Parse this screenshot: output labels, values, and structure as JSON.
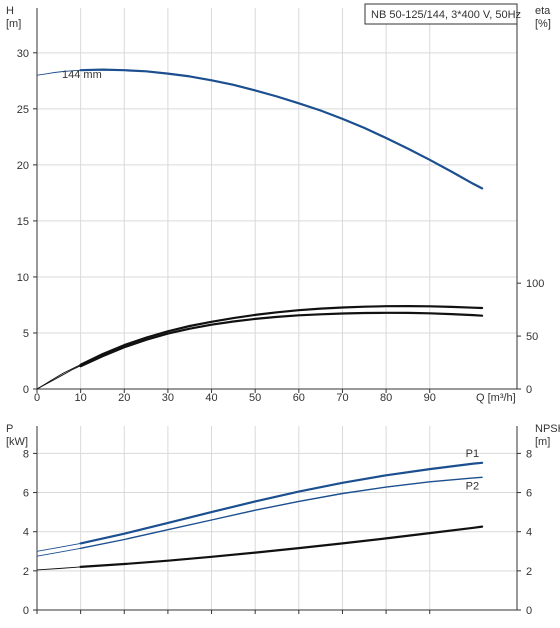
{
  "chart_data": [
    {
      "type": "line",
      "subtitle": "NB 50-125/144, 3*400 V, 50Hz",
      "ylabel_left": [
        "H",
        "[m]"
      ],
      "ylabel_right": [
        "eta",
        "[%]"
      ],
      "xlabel": "Q [m³/h]",
      "x_ticks": [
        0,
        10,
        20,
        30,
        40,
        50,
        60,
        70,
        80,
        90
      ],
      "y_ticks_left": [
        0,
        5,
        10,
        15,
        20,
        25,
        30
      ],
      "y_ticks_right": [
        0,
        50,
        100
      ],
      "xlim": [
        0,
        110
      ],
      "ylim_left": [
        0,
        34
      ],
      "ylim_right": [
        0,
        360
      ],
      "grid": true,
      "annotation": "144 mm",
      "series": [
        {
          "axis": "left",
          "color": "#1c4f8f",
          "x_dashed": [
            0,
            2,
            4,
            6,
            8,
            10
          ],
          "y_dashed": [
            28.0,
            28.12,
            28.24,
            28.33,
            28.4,
            28.45
          ],
          "x": [
            10,
            15,
            20,
            25,
            30,
            35,
            40,
            45,
            50,
            55,
            60,
            65,
            70,
            75,
            80,
            85,
            90,
            95,
            100,
            102
          ],
          "y": [
            28.45,
            28.5,
            28.45,
            28.35,
            28.15,
            27.9,
            27.55,
            27.15,
            26.65,
            26.1,
            25.5,
            24.85,
            24.1,
            23.3,
            22.4,
            21.45,
            20.45,
            19.4,
            18.3,
            17.9
          ]
        },
        {
          "axis": "right",
          "color": "#111111",
          "x_dashed": [
            0,
            2,
            4,
            6,
            8,
            10
          ],
          "y_dashed": [
            0,
            5,
            10,
            15,
            19,
            23
          ],
          "x": [
            10,
            15,
            20,
            25,
            30,
            35,
            40,
            45,
            50,
            55,
            60,
            65,
            70,
            75,
            80,
            85,
            90,
            95,
            100,
            102
          ],
          "y": [
            23,
            33,
            41.5,
            48.5,
            54.5,
            59.5,
            63.5,
            67,
            70,
            72.5,
            74.5,
            76,
            77,
            77.8,
            78.2,
            78.3,
            78.1,
            77.6,
            76.8,
            76.5
          ]
        },
        {
          "axis": "right",
          "color": "#111111",
          "x_dashed": [
            0,
            2,
            4,
            6,
            8,
            10
          ],
          "y_dashed": [
            0,
            4.5,
            9,
            13.5,
            18,
            22
          ],
          "x": [
            10,
            15,
            20,
            25,
            30,
            35,
            40,
            45,
            50,
            55,
            60,
            65,
            70,
            75,
            80,
            85,
            90,
            95,
            100,
            102
          ],
          "y": [
            21.5,
            31,
            39.5,
            46.5,
            52.3,
            57,
            60.8,
            63.8,
            66.2,
            68.1,
            69.6,
            70.6,
            71.3,
            71.8,
            72,
            71.9,
            71.5,
            70.8,
            69.8,
            69.3
          ]
        }
      ]
    },
    {
      "type": "line",
      "ylabel_left": [
        "P",
        "[kW]"
      ],
      "ylabel_right": [
        "NPSH",
        "[m]"
      ],
      "x_ticks": [
        0,
        10,
        20,
        30,
        40,
        50,
        60,
        70,
        80,
        90
      ],
      "y_ticks_left": [
        0,
        2,
        4,
        6,
        8
      ],
      "y_ticks_right": [
        0,
        2,
        4,
        6,
        8
      ],
      "xlim": [
        0,
        110
      ],
      "ylim_left": [
        0,
        9.4
      ],
      "ylim_right": [
        0,
        9.4
      ],
      "grid": true,
      "series": [
        {
          "name": "P1",
          "axis": "left",
          "color": "#1c4f8f",
          "x_dashed": [
            0,
            5,
            10
          ],
          "y_dashed": [
            3.0,
            3.2,
            3.4
          ],
          "x": [
            10,
            20,
            30,
            40,
            50,
            60,
            70,
            80,
            90,
            100,
            102
          ],
          "y": [
            3.4,
            3.9,
            4.45,
            5.0,
            5.55,
            6.05,
            6.5,
            6.88,
            7.2,
            7.48,
            7.52
          ]
        },
        {
          "name": "P2",
          "axis": "left",
          "color": "#1c4f8f",
          "x_dashed": [
            0,
            5,
            10
          ],
          "y_dashed": [
            2.75,
            2.95,
            3.15
          ],
          "x": [
            10,
            20,
            30,
            40,
            50,
            60,
            70,
            80,
            90,
            100,
            102
          ],
          "y": [
            3.15,
            3.6,
            4.1,
            4.6,
            5.1,
            5.55,
            5.95,
            6.28,
            6.55,
            6.75,
            6.78
          ]
        },
        {
          "axis": "right",
          "color": "#111111",
          "x_dashed": [
            0,
            5,
            10
          ],
          "y_dashed": [
            2.05,
            2.12,
            2.2
          ],
          "x": [
            10,
            20,
            30,
            40,
            50,
            60,
            70,
            80,
            90,
            100,
            102
          ],
          "y": [
            2.2,
            2.35,
            2.52,
            2.72,
            2.93,
            3.16,
            3.4,
            3.66,
            3.93,
            4.2,
            4.26
          ]
        }
      ]
    }
  ]
}
